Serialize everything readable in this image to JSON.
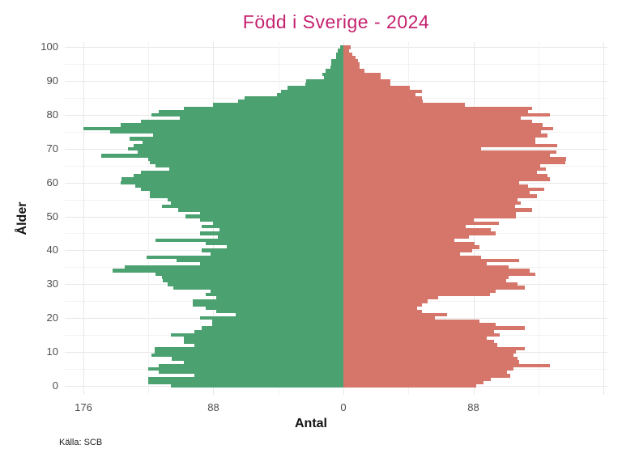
{
  "title": "Född i Sverige - 2024",
  "caption": "Källa: SCB",
  "chart_data": {
    "type": "bar",
    "subtype": "population-pyramid",
    "title": "Född i Sverige - 2024",
    "xlabel": "Antal",
    "ylabel": "Ålder",
    "caption": "Källa: SCB",
    "orientation": "horizontal",
    "grid": "on",
    "legend": "none",
    "age_min": 0,
    "age_max": 100,
    "y_axis": {
      "tick_values": [
        0,
        10,
        20,
        30,
        40,
        50,
        60,
        70,
        80,
        90,
        100
      ],
      "minor_tick_values": [
        5,
        15,
        25,
        35,
        45,
        55,
        65,
        75,
        85,
        95
      ],
      "range": [
        0,
        100
      ]
    },
    "x_axis": {
      "range": [
        -188,
        178
      ],
      "major_tick_values": [
        -176,
        -88,
        0,
        88,
        176
      ],
      "minor_tick_values": [
        -132,
        -44,
        44,
        132
      ],
      "tick_labels": [
        {
          "value": -176,
          "label": "176"
        },
        {
          "value": -88,
          "label": "88"
        },
        {
          "value": 0,
          "label": "0"
        },
        {
          "value": 88,
          "label": "88"
        }
      ]
    },
    "series": [
      {
        "name": "left",
        "side": "left",
        "color": "#4ca171",
        "values": [
          117,
          132,
          132,
          101,
          125,
          132,
          125,
          108,
          116,
          130,
          128,
          128,
          101,
          108,
          108,
          117,
          101,
          96,
          89,
          89,
          97,
          73,
          86,
          93,
          102,
          102,
          86,
          93,
          90,
          115,
          119,
          122,
          123,
          127,
          156,
          148,
          97,
          113,
          133,
          90,
          96,
          79,
          93,
          127,
          85,
          97,
          84,
          96,
          88,
          97,
          107,
          97,
          112,
          123,
          117,
          119,
          131,
          131,
          137,
          141,
          151,
          150,
          142,
          137,
          118,
          127,
          131,
          132,
          164,
          139,
          146,
          142,
          136,
          145,
          129,
          158,
          176,
          151,
          137,
          111,
          130,
          125,
          108,
          88,
          71,
          67,
          45,
          42,
          38,
          26,
          25,
          13,
          14,
          12,
          9,
          8,
          8,
          5,
          5,
          4,
          2
        ]
      },
      {
        "name": "right",
        "side": "right",
        "color": "#d6766a",
        "values": [
          90,
          95,
          100,
          113,
          111,
          115,
          140,
          119,
          118,
          115,
          117,
          123,
          104,
          102,
          97,
          106,
          102,
          123,
          103,
          92,
          62,
          70,
          53,
          50,
          53,
          57,
          64,
          99,
          103,
          123,
          118,
          110,
          112,
          130,
          126,
          112,
          97,
          119,
          93,
          79,
          87,
          92,
          89,
          75,
          85,
          103,
          100,
          83,
          105,
          88,
          117,
          117,
          128,
          116,
          120,
          118,
          131,
          126,
          136,
          125,
          119,
          140,
          138,
          131,
          137,
          133,
          150,
          151,
          140,
          144,
          93,
          145,
          130,
          130,
          138,
          134,
          142,
          135,
          128,
          120,
          140,
          125,
          128,
          82,
          54,
          53,
          49,
          53,
          45,
          32,
          32,
          25,
          25,
          14,
          11,
          11,
          10,
          8,
          6,
          4,
          5
        ]
      }
    ]
  },
  "colors": {
    "title": "#c4216e",
    "bar_left": "#4ca171",
    "bar_right": "#d6766a",
    "tick_label": "#4d4d4d",
    "gridline_major": "#e7e7e7",
    "gridline_minor": "#f2f2f2"
  }
}
